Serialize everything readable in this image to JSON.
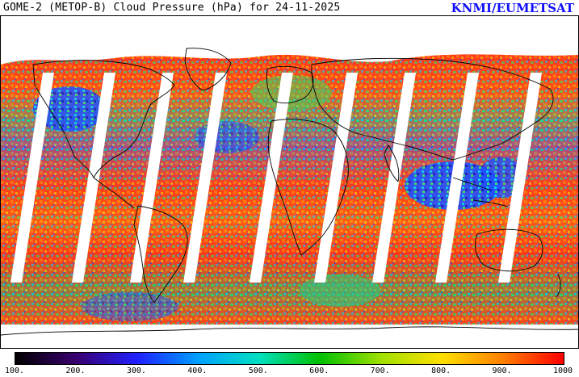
{
  "header": {
    "title": "GOME-2 (METOP-B) Cloud Pressure (hPa) for 24-11-2025",
    "credit": "KNMI/EUMETSAT"
  },
  "map": {
    "projection": "equirectangular",
    "land_outline_color": "#000000",
    "no_data_color": "#ffffff",
    "gap_swaths": 9,
    "features": [
      "coastline-outline",
      "data-swaths",
      "data-gaps"
    ]
  },
  "colorbar": {
    "min": 100,
    "max": 1000,
    "unit": "hPa",
    "tick_labels": [
      "100.",
      "200.",
      "300.",
      "400.",
      "500.",
      "600.",
      "700.",
      "800.",
      "900.",
      "1000"
    ],
    "stops": [
      "#000000",
      "#3a0070",
      "#2020ff",
      "#00a0ff",
      "#00e0c0",
      "#00c000",
      "#a0e000",
      "#ffe000",
      "#ff8000",
      "#ff0000"
    ]
  }
}
